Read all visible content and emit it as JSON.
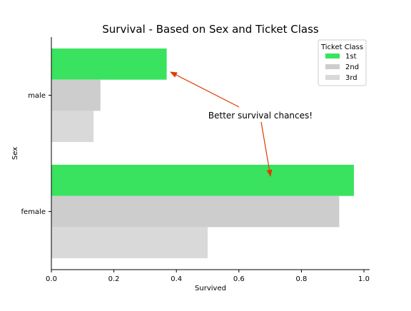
{
  "chart_data": {
    "type": "bar",
    "orientation": "horizontal",
    "title": "Survival - Based on Sex and Ticket Class",
    "xlabel": "Survived",
    "ylabel": "Sex",
    "xlim": [
      0,
      1.02
    ],
    "xticks": [
      "0.0",
      "0.2",
      "0.4",
      "0.6",
      "0.8",
      "1.0"
    ],
    "categories": [
      "male",
      "female"
    ],
    "legend": {
      "title": "Ticket Class",
      "placement": "top-right"
    },
    "series": [
      {
        "name": "1st",
        "color": "#39e35f",
        "values": [
          0.369,
          0.968
        ]
      },
      {
        "name": "2nd",
        "color": "#cdcdcd",
        "values": [
          0.157,
          0.921
        ]
      },
      {
        "name": "3rd",
        "color": "#d9d9d9",
        "values": [
          0.135,
          0.5
        ]
      }
    ],
    "annotation": {
      "text": "Better survival chances!",
      "color": "#e03a00"
    },
    "grid": false
  }
}
